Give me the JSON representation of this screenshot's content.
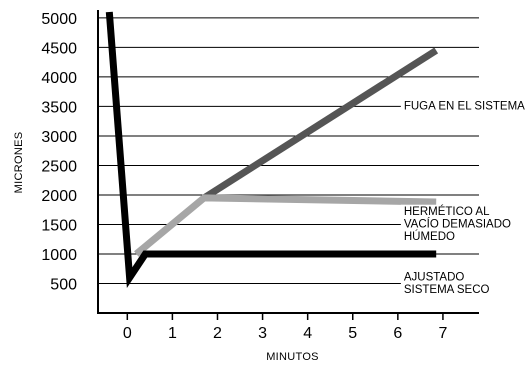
{
  "chart_data": {
    "type": "line",
    "xlabel": "MINUTOS",
    "ylabel": "MICRONES",
    "xlim": [
      -0.65,
      7.8
    ],
    "ylim": [
      0,
      5100
    ],
    "x_ticks": [
      0,
      1,
      2,
      3,
      4,
      5,
      6,
      7
    ],
    "y_ticks": [
      500,
      1000,
      1500,
      2000,
      2500,
      3000,
      3500,
      4000,
      4500,
      5000
    ],
    "grid": "horizontal",
    "series": [
      {
        "name": "FUGA EN EL SISTEMA",
        "color": "#555555",
        "points": [
          [
            1.7,
            1950
          ],
          [
            6.85,
            4450
          ]
        ]
      },
      {
        "name": "HERMÉTICO AL VACÍO DEMASIADO HÚMEDO",
        "color": "#a6a6a6",
        "points": [
          [
            0.2,
            1000
          ],
          [
            1.7,
            1950
          ],
          [
            6.85,
            1880
          ]
        ]
      },
      {
        "name": "AJUSTADO SISTEMA SECO",
        "color": "#000000",
        "points": [
          [
            -0.4,
            5100
          ],
          [
            0.05,
            600
          ],
          [
            0.4,
            1000
          ],
          [
            6.85,
            1000
          ]
        ]
      }
    ],
    "annotations": [
      {
        "lines": [
          "FUGA EN EL SISTEMA"
        ],
        "anchor_x": 6.2,
        "anchor_y": 3500
      },
      {
        "lines": [
          "HERMÉTICO AL",
          "VACÍO DEMASIADO",
          "HÚMEDO"
        ],
        "anchor_x": 6.2,
        "anchor_y": 1500
      },
      {
        "lines": [
          "AJUSTADO",
          "SISTEMA SECO"
        ],
        "anchor_x": 6.2,
        "anchor_y": 500
      }
    ]
  }
}
